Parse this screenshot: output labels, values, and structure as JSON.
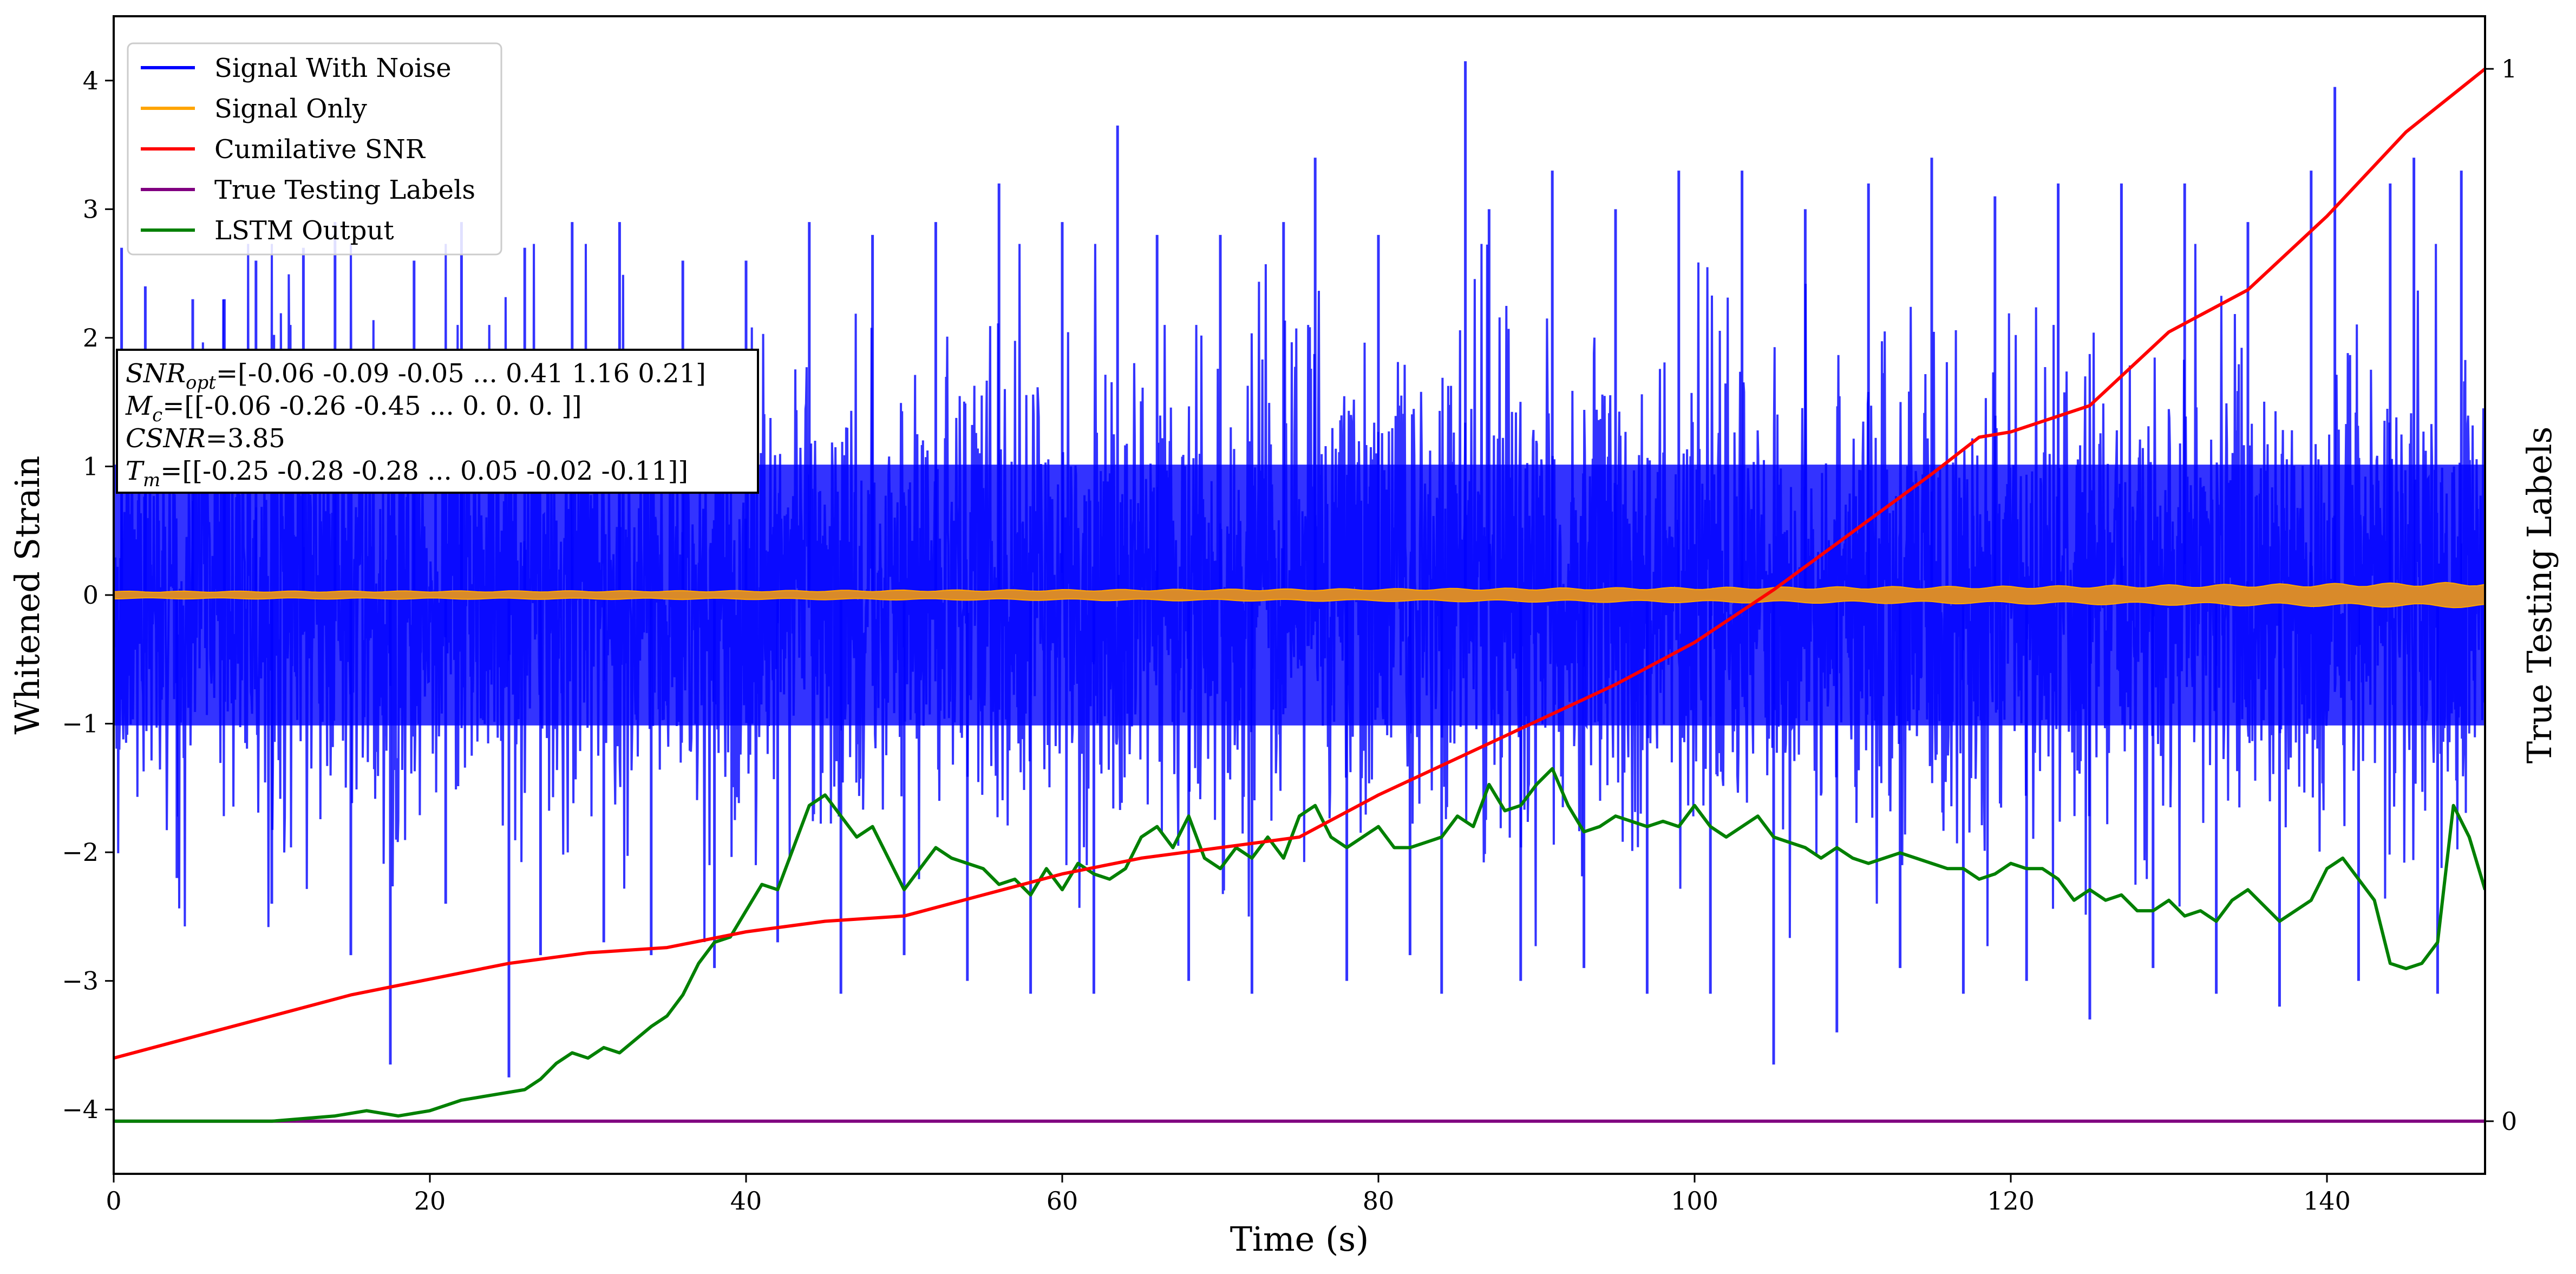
{
  "chart_data": {
    "type": "line",
    "xlabel": "Time (s)",
    "ylabel": "Whitened Strain",
    "y2label": "True Testing Labels",
    "xlim": [
      0,
      150
    ],
    "ylim": [
      -4.5,
      4.5
    ],
    "y2lim": [
      -0.05,
      1.05
    ],
    "xticks": [
      0,
      20,
      40,
      60,
      80,
      100,
      120,
      140
    ],
    "xtick_labels": [
      "0",
      "20",
      "40",
      "60",
      "80",
      "100",
      "120",
      "140"
    ],
    "yticks": [
      -4,
      -3,
      -2,
      -1,
      0,
      1,
      2,
      3,
      4
    ],
    "ytick_labels": [
      "−4",
      "−3",
      "−2",
      "−1",
      "0",
      "1",
      "2",
      "3",
      "4"
    ],
    "y2ticks": [
      0,
      1
    ],
    "y2tick_labels": [
      "0",
      "1"
    ],
    "grid": false,
    "legend_position": "top-left",
    "series": [
      {
        "name": "Signal With Noise",
        "color": "#0000ff",
        "style": "dense noise, band approximately ±1.3 with spikes to ±3.5",
        "envelope": {
          "upper": 1.3,
          "lower": -1.3
        },
        "spikes": [
          [
            0.5,
            2.7
          ],
          [
            2,
            2.4
          ],
          [
            4,
            -2.2
          ],
          [
            5,
            2.3
          ],
          [
            7,
            2.3
          ],
          [
            9,
            2.6
          ],
          [
            10,
            -2.4
          ],
          [
            12,
            2.7
          ],
          [
            14,
            2.9
          ],
          [
            15,
            -2.8
          ],
          [
            17.5,
            -3.65
          ],
          [
            19,
            2.6
          ],
          [
            21,
            -2.4
          ],
          [
            22,
            2.9
          ],
          [
            25,
            -3.75
          ],
          [
            26,
            2.7
          ],
          [
            27,
            -2.8
          ],
          [
            29,
            2.9
          ],
          [
            31,
            -2.7
          ],
          [
            32,
            2.9
          ],
          [
            34,
            -2.8
          ],
          [
            36,
            2.6
          ],
          [
            38,
            -2.9
          ],
          [
            40,
            2.6
          ],
          [
            42,
            -2.7
          ],
          [
            44,
            2.9
          ],
          [
            46,
            -3.1
          ],
          [
            48,
            2.8
          ],
          [
            50,
            -2.8
          ],
          [
            52,
            2.9
          ],
          [
            54,
            -3.0
          ],
          [
            56,
            3.2
          ],
          [
            58,
            -3.1
          ],
          [
            60,
            2.9
          ],
          [
            62,
            -3.1
          ],
          [
            63.5,
            3.65
          ],
          [
            66,
            2.8
          ],
          [
            68,
            -3.0
          ],
          [
            70,
            2.8
          ],
          [
            72,
            -3.1
          ],
          [
            74,
            2.9
          ],
          [
            76,
            3.4
          ],
          [
            78,
            -3.0
          ],
          [
            80,
            2.8
          ],
          [
            82,
            -2.8
          ],
          [
            84,
            -3.1
          ],
          [
            85.5,
            4.15
          ],
          [
            87,
            3.0
          ],
          [
            89,
            -3.0
          ],
          [
            91,
            3.3
          ],
          [
            93,
            -2.9
          ],
          [
            95,
            3.0
          ],
          [
            97,
            -3.1
          ],
          [
            99,
            3.3
          ],
          [
            101,
            -3.1
          ],
          [
            103,
            3.3
          ],
          [
            105,
            -3.65
          ],
          [
            107,
            3.0
          ],
          [
            109,
            -3.4
          ],
          [
            111,
            3.2
          ],
          [
            113,
            -2.9
          ],
          [
            115,
            3.4
          ],
          [
            117,
            -3.1
          ],
          [
            119,
            3.1
          ],
          [
            121,
            -3.0
          ],
          [
            123,
            3.2
          ],
          [
            125,
            -3.3
          ],
          [
            127,
            3.2
          ],
          [
            129,
            -2.9
          ],
          [
            131,
            3.2
          ],
          [
            133,
            -3.1
          ],
          [
            135,
            2.9
          ],
          [
            137,
            -3.2
          ],
          [
            139,
            3.3
          ],
          [
            140.5,
            3.95
          ],
          [
            142,
            -3.0
          ],
          [
            144,
            3.2
          ],
          [
            145.5,
            3.4
          ],
          [
            147,
            -3.1
          ],
          [
            148.5,
            3.3
          ]
        ]
      },
      {
        "name": "Signal Only",
        "color": "#ffa500",
        "style": "thin band around zero, amplitude growing with time",
        "amplitude": [
          [
            0,
            0.03
          ],
          [
            40,
            0.035
          ],
          [
            80,
            0.05
          ],
          [
            120,
            0.07
          ],
          [
            150,
            0.1
          ]
        ]
      },
      {
        "name": "Cumilative SNR",
        "color": "#ff0000",
        "axis": "secondary",
        "points": [
          [
            0,
            0.06
          ],
          [
            5,
            0.08
          ],
          [
            10,
            0.1
          ],
          [
            15,
            0.12
          ],
          [
            20,
            0.135
          ],
          [
            25,
            0.15
          ],
          [
            30,
            0.16
          ],
          [
            35,
            0.165
          ],
          [
            40,
            0.18
          ],
          [
            45,
            0.19
          ],
          [
            50,
            0.195
          ],
          [
            55,
            0.215
          ],
          [
            60,
            0.235
          ],
          [
            65,
            0.25
          ],
          [
            70,
            0.26
          ],
          [
            75,
            0.27
          ],
          [
            80,
            0.31
          ],
          [
            85,
            0.345
          ],
          [
            90,
            0.38
          ],
          [
            95,
            0.415
          ],
          [
            100,
            0.455
          ],
          [
            105,
            0.505
          ],
          [
            110,
            0.56
          ],
          [
            115,
            0.615
          ],
          [
            118,
            0.65
          ],
          [
            120,
            0.655
          ],
          [
            125,
            0.68
          ],
          [
            130,
            0.75
          ],
          [
            135,
            0.79
          ],
          [
            140,
            0.86
          ],
          [
            145,
            0.94
          ],
          [
            150,
            1.0
          ]
        ]
      },
      {
        "name": "True Testing Labels",
        "color": "#800080",
        "axis": "secondary",
        "points": [
          [
            0,
            0
          ],
          [
            150,
            0
          ]
        ]
      },
      {
        "name": "LSTM Output",
        "color": "#008000",
        "axis": "secondary",
        "points": [
          [
            0,
            0
          ],
          [
            10,
            0
          ],
          [
            14,
            0.005
          ],
          [
            16,
            0.01
          ],
          [
            18,
            0.005
          ],
          [
            20,
            0.01
          ],
          [
            22,
            0.02
          ],
          [
            24,
            0.025
          ],
          [
            26,
            0.03
          ],
          [
            27,
            0.04
          ],
          [
            28,
            0.055
          ],
          [
            29,
            0.065
          ],
          [
            30,
            0.06
          ],
          [
            31,
            0.07
          ],
          [
            32,
            0.065
          ],
          [
            34,
            0.09
          ],
          [
            35,
            0.1
          ],
          [
            36,
            0.12
          ],
          [
            37,
            0.15
          ],
          [
            38,
            0.17
          ],
          [
            39,
            0.175
          ],
          [
            40,
            0.2
          ],
          [
            41,
            0.225
          ],
          [
            42,
            0.22
          ],
          [
            43,
            0.26
          ],
          [
            44,
            0.3
          ],
          [
            45,
            0.31
          ],
          [
            46,
            0.29
          ],
          [
            47,
            0.27
          ],
          [
            48,
            0.28
          ],
          [
            49,
            0.25
          ],
          [
            50,
            0.22
          ],
          [
            51,
            0.24
          ],
          [
            52,
            0.26
          ],
          [
            53,
            0.25
          ],
          [
            54,
            0.245
          ],
          [
            55,
            0.24
          ],
          [
            56,
            0.225
          ],
          [
            57,
            0.23
          ],
          [
            58,
            0.215
          ],
          [
            59,
            0.24
          ],
          [
            60,
            0.22
          ],
          [
            61,
            0.245
          ],
          [
            62,
            0.235
          ],
          [
            63,
            0.23
          ],
          [
            64,
            0.24
          ],
          [
            65,
            0.27
          ],
          [
            66,
            0.28
          ],
          [
            67,
            0.26
          ],
          [
            68,
            0.29
          ],
          [
            69,
            0.25
          ],
          [
            70,
            0.24
          ],
          [
            71,
            0.26
          ],
          [
            72,
            0.25
          ],
          [
            73,
            0.27
          ],
          [
            74,
            0.25
          ],
          [
            75,
            0.29
          ],
          [
            76,
            0.3
          ],
          [
            77,
            0.27
          ],
          [
            78,
            0.26
          ],
          [
            79,
            0.27
          ],
          [
            80,
            0.28
          ],
          [
            81,
            0.26
          ],
          [
            82,
            0.26
          ],
          [
            83,
            0.265
          ],
          [
            84,
            0.27
          ],
          [
            85,
            0.29
          ],
          [
            86,
            0.28
          ],
          [
            87,
            0.32
          ],
          [
            88,
            0.295
          ],
          [
            89,
            0.3
          ],
          [
            90,
            0.32
          ],
          [
            91,
            0.335
          ],
          [
            92,
            0.3
          ],
          [
            93,
            0.275
          ],
          [
            94,
            0.28
          ],
          [
            95,
            0.29
          ],
          [
            96,
            0.285
          ],
          [
            97,
            0.28
          ],
          [
            98,
            0.285
          ],
          [
            99,
            0.28
          ],
          [
            100,
            0.3
          ],
          [
            101,
            0.28
          ],
          [
            102,
            0.27
          ],
          [
            103,
            0.28
          ],
          [
            104,
            0.29
          ],
          [
            105,
            0.27
          ],
          [
            106,
            0.265
          ],
          [
            107,
            0.26
          ],
          [
            108,
            0.25
          ],
          [
            109,
            0.26
          ],
          [
            110,
            0.25
          ],
          [
            111,
            0.245
          ],
          [
            112,
            0.25
          ],
          [
            113,
            0.255
          ],
          [
            114,
            0.25
          ],
          [
            115,
            0.245
          ],
          [
            116,
            0.24
          ],
          [
            117,
            0.24
          ],
          [
            118,
            0.23
          ],
          [
            119,
            0.235
          ],
          [
            120,
            0.245
          ],
          [
            121,
            0.24
          ],
          [
            122,
            0.24
          ],
          [
            123,
            0.23
          ],
          [
            124,
            0.21
          ],
          [
            125,
            0.22
          ],
          [
            126,
            0.21
          ],
          [
            127,
            0.215
          ],
          [
            128,
            0.2
          ],
          [
            129,
            0.2
          ],
          [
            130,
            0.21
          ],
          [
            131,
            0.195
          ],
          [
            132,
            0.2
          ],
          [
            133,
            0.19
          ],
          [
            134,
            0.21
          ],
          [
            135,
            0.22
          ],
          [
            136,
            0.205
          ],
          [
            137,
            0.19
          ],
          [
            138,
            0.2
          ],
          [
            139,
            0.21
          ],
          [
            140,
            0.24
          ],
          [
            141,
            0.25
          ],
          [
            142,
            0.23
          ],
          [
            143,
            0.21
          ],
          [
            144,
            0.15
          ],
          [
            145,
            0.145
          ],
          [
            146,
            0.15
          ],
          [
            147,
            0.17
          ],
          [
            148,
            0.3
          ],
          [
            149,
            0.27
          ],
          [
            150,
            0.22
          ]
        ]
      }
    ],
    "annotation": {
      "position": "top-left, below legend",
      "lines": [
        {
          "label": "SNR",
          "sub": "opt",
          "value": "=[-0.06 -0.09 -0.05 ...  0.41  1.16  0.21]"
        },
        {
          "label": "M",
          "sub": "c",
          "value": "=[[-0.06 -0.26 -0.45 ...  0.    0.    0.  ]]"
        },
        {
          "label": "CSNR",
          "sub": "",
          "value": "=3.85"
        },
        {
          "label": "T",
          "sub": "m",
          "value": "=[[-0.25 -0.28 -0.28 ...  0.05 -0.02 -0.11]]"
        }
      ]
    }
  }
}
